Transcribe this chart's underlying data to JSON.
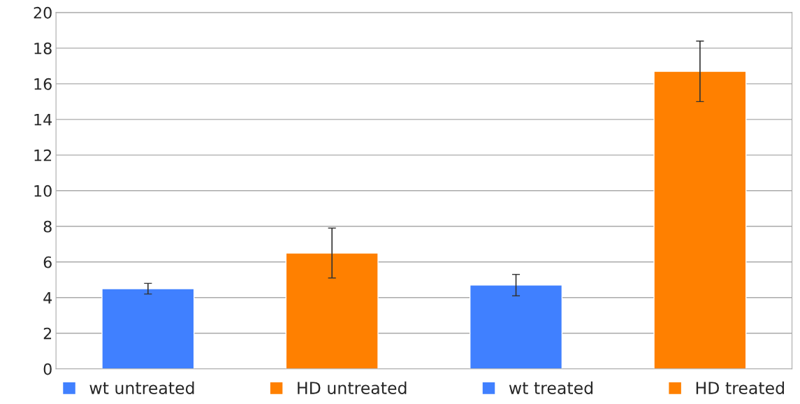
{
  "chart_data": {
    "type": "bar",
    "categories": [
      null,
      null,
      null,
      null
    ],
    "series": [
      {
        "name": "wt untreated",
        "color": "#4080ff",
        "values": [
          4.5,
          null,
          null,
          null
        ],
        "errors": [
          0.3,
          null,
          null,
          null
        ]
      },
      {
        "name": "HD untreated",
        "color": "#ff8000",
        "values": [
          null,
          6.5,
          null,
          null
        ],
        "errors": [
          null,
          1.4,
          null,
          null
        ]
      },
      {
        "name": "wt treated",
        "color": "#4080ff",
        "values": [
          null,
          null,
          4.7,
          null
        ],
        "errors": [
          null,
          null,
          0.6,
          null
        ]
      },
      {
        "name": "HD treated",
        "color": "#ff8000",
        "values": [
          null,
          null,
          null,
          16.7
        ],
        "errors": [
          null,
          null,
          null,
          1.7
        ]
      }
    ],
    "ylim": [
      0,
      20
    ],
    "yticks": [
      0,
      2,
      4,
      6,
      8,
      10,
      12,
      14,
      16,
      18,
      20
    ],
    "grid": "y",
    "legend": "bottom"
  }
}
